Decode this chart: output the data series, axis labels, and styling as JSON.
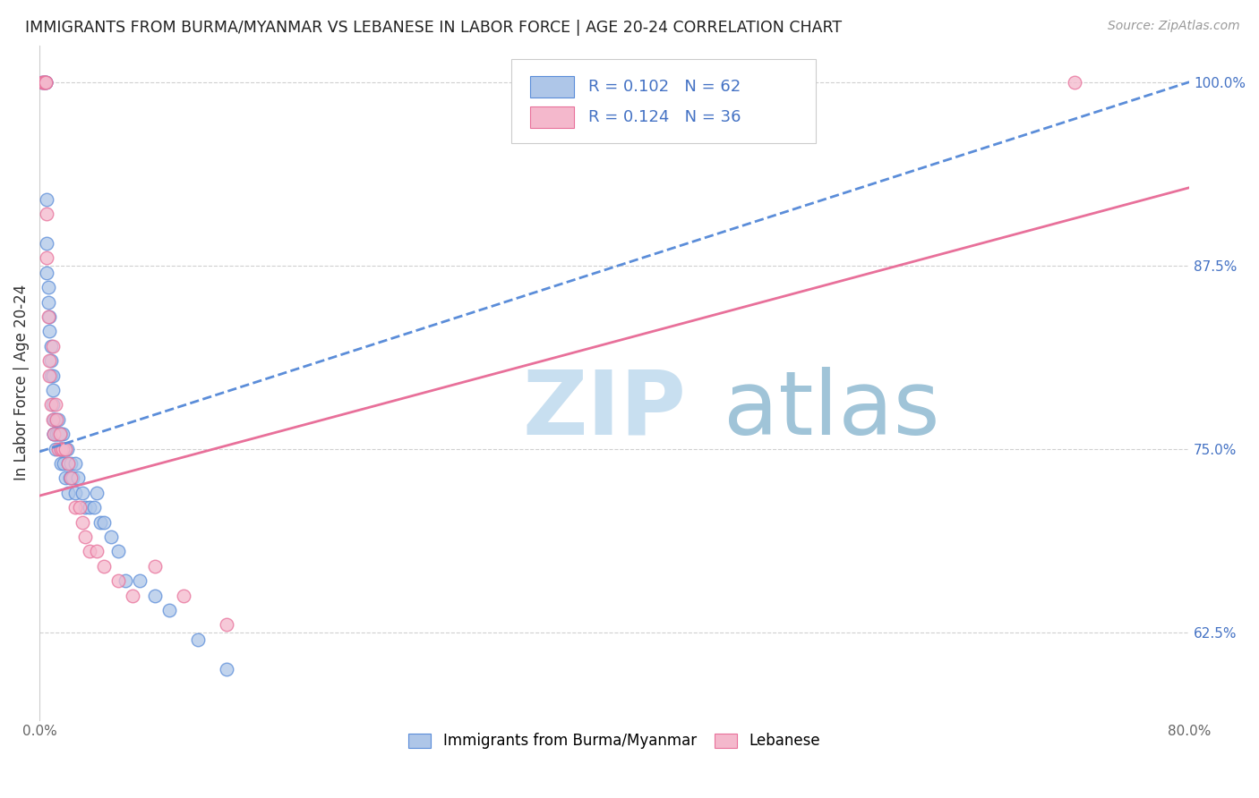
{
  "title": "IMMIGRANTS FROM BURMA/MYANMAR VS LEBANESE IN LABOR FORCE | AGE 20-24 CORRELATION CHART",
  "source": "Source: ZipAtlas.com",
  "ylabel": "In Labor Force | Age 20-24",
  "xlim": [
    0.0,
    0.8
  ],
  "ylim": [
    0.565,
    1.025
  ],
  "xticks": [
    0.0,
    0.1,
    0.2,
    0.3,
    0.4,
    0.5,
    0.6,
    0.7,
    0.8
  ],
  "xticklabels": [
    "0.0%",
    "",
    "",
    "",
    "",
    "",
    "",
    "",
    "80.0%"
  ],
  "yticks_right": [
    0.625,
    0.75,
    0.875,
    1.0
  ],
  "yticklabels_right": [
    "62.5%",
    "75.0%",
    "87.5%",
    "100.0%"
  ],
  "legend_r1": "R = 0.102",
  "legend_n1": "N = 62",
  "legend_r2": "R = 0.124",
  "legend_n2": "N = 36",
  "color_blue": "#aec6e8",
  "color_pink": "#f4b8cc",
  "color_line_blue": "#5b8dd9",
  "color_line_pink": "#e8709a",
  "color_text_blue": "#4472c4",
  "watermark_zip": "ZIP",
  "watermark_atlas": "atlas",
  "watermark_color_zip": "#c8dff0",
  "watermark_color_atlas": "#a0c4d8",
  "blue_trend_x0": 0.0,
  "blue_trend_y0": 0.748,
  "blue_trend_x1": 0.8,
  "blue_trend_y1": 1.0,
  "pink_trend_x0": 0.0,
  "pink_trend_y0": 0.718,
  "pink_trend_x1": 0.8,
  "pink_trend_y1": 0.928,
  "scatter_blue_x": [
    0.002,
    0.003,
    0.004,
    0.004,
    0.005,
    0.005,
    0.005,
    0.006,
    0.006,
    0.007,
    0.007,
    0.008,
    0.008,
    0.008,
    0.009,
    0.009,
    0.009,
    0.01,
    0.01,
    0.01,
    0.01,
    0.011,
    0.011,
    0.012,
    0.012,
    0.013,
    0.013,
    0.014,
    0.014,
    0.015,
    0.015,
    0.015,
    0.016,
    0.016,
    0.017,
    0.017,
    0.018,
    0.018,
    0.019,
    0.02,
    0.02,
    0.021,
    0.022,
    0.023,
    0.025,
    0.025,
    0.027,
    0.03,
    0.032,
    0.035,
    0.038,
    0.04,
    0.042,
    0.045,
    0.05,
    0.055,
    0.06,
    0.07,
    0.08,
    0.09,
    0.11,
    0.13
  ],
  "scatter_blue_y": [
    1.0,
    1.0,
    1.0,
    1.0,
    0.92,
    0.89,
    0.87,
    0.86,
    0.85,
    0.84,
    0.83,
    0.82,
    0.81,
    0.8,
    0.79,
    0.78,
    0.8,
    0.77,
    0.77,
    0.76,
    0.76,
    0.77,
    0.75,
    0.76,
    0.76,
    0.77,
    0.76,
    0.76,
    0.75,
    0.76,
    0.75,
    0.74,
    0.75,
    0.76,
    0.75,
    0.74,
    0.73,
    0.75,
    0.75,
    0.74,
    0.72,
    0.73,
    0.74,
    0.73,
    0.72,
    0.74,
    0.73,
    0.72,
    0.71,
    0.71,
    0.71,
    0.72,
    0.7,
    0.7,
    0.69,
    0.68,
    0.66,
    0.66,
    0.65,
    0.64,
    0.62,
    0.6
  ],
  "scatter_pink_x": [
    0.002,
    0.003,
    0.003,
    0.004,
    0.004,
    0.005,
    0.005,
    0.006,
    0.007,
    0.007,
    0.008,
    0.009,
    0.009,
    0.01,
    0.011,
    0.012,
    0.013,
    0.014,
    0.015,
    0.016,
    0.018,
    0.02,
    0.022,
    0.025,
    0.028,
    0.03,
    0.032,
    0.035,
    0.04,
    0.045,
    0.055,
    0.065,
    0.08,
    0.1,
    0.13,
    0.72
  ],
  "scatter_pink_y": [
    1.0,
    1.0,
    1.0,
    1.0,
    1.0,
    0.91,
    0.88,
    0.84,
    0.81,
    0.8,
    0.78,
    0.77,
    0.82,
    0.76,
    0.78,
    0.77,
    0.75,
    0.76,
    0.75,
    0.75,
    0.75,
    0.74,
    0.73,
    0.71,
    0.71,
    0.7,
    0.69,
    0.68,
    0.68,
    0.67,
    0.66,
    0.65,
    0.67,
    0.65,
    0.63,
    1.0
  ]
}
